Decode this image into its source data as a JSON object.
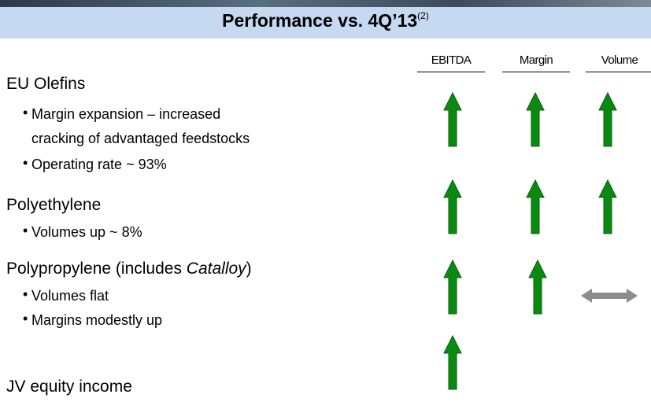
{
  "header": {
    "title": "Performance vs. 4Q’13",
    "footnote": "(2)"
  },
  "columns": [
    "EBITDA",
    "Margin",
    "Volume"
  ],
  "sections": [
    {
      "heading": "EU Olefins",
      "bullets": [
        "Margin expansion – increased",
        "cracking of advantaged feedstocks",
        "Operating rate ~ 93%"
      ]
    },
    {
      "heading": "Polyethylene",
      "bullets": [
        "Volumes up ~ 8%"
      ]
    },
    {
      "heading": "Polypropylene (includes ",
      "heading_italic": "Catalloy",
      "heading_end": ")",
      "bullets": [
        "Volumes flat",
        "Margins modestly up"
      ]
    },
    {
      "heading": "JV equity income"
    }
  ]
}
